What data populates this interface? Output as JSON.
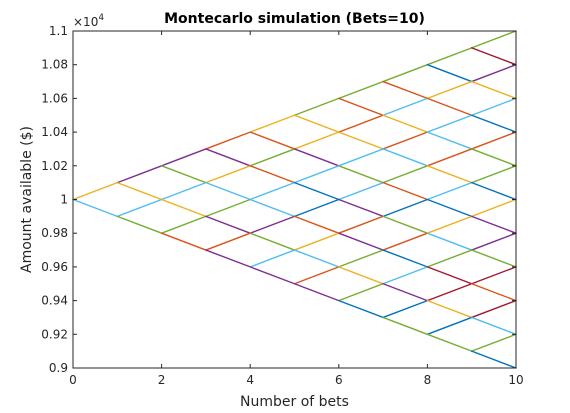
{
  "chart_data": {
    "type": "line",
    "title": "Montecarlo simulation (Bets=10)",
    "xlabel": "Number of bets",
    "ylabel": "Amount available ($)",
    "xlim": [
      0,
      10
    ],
    "ylim": [
      0.9,
      1.1
    ],
    "y_exponent_label": "×10",
    "y_exponent_power": "4",
    "xticks": [
      0,
      2,
      4,
      6,
      8,
      10
    ],
    "xtick_labels": [
      "0",
      "2",
      "4",
      "6",
      "8",
      "10"
    ],
    "yticks": [
      0.9,
      0.92,
      0.94,
      0.96,
      0.98,
      1.0,
      1.02,
      1.04,
      1.06,
      1.08,
      1.1
    ],
    "ytick_labels": [
      "0.9",
      "0.92",
      "0.94",
      "0.96",
      "0.98",
      "1",
      "1.02",
      "1.04",
      "1.06",
      "1.08",
      "1.1"
    ],
    "grid": false,
    "legend": "none",
    "palette": [
      "#0072BD",
      "#D95319",
      "#EDB120",
      "#7E2F8E",
      "#77AC30",
      "#4DBEEE",
      "#A2142F"
    ],
    "segments": [
      {
        "x": [
          0,
          1
        ],
        "y": [
          1.0,
          1.01
        ],
        "color": "#EDB120"
      },
      {
        "x": [
          0,
          1
        ],
        "y": [
          1.0,
          0.99
        ],
        "color": "#4DBEEE"
      },
      {
        "x": [
          1,
          2
        ],
        "y": [
          1.01,
          1.02
        ],
        "color": "#7E2F8E"
      },
      {
        "x": [
          1,
          2
        ],
        "y": [
          1.01,
          1.0
        ],
        "color": "#EDB120"
      },
      {
        "x": [
          1,
          2
        ],
        "y": [
          0.99,
          1.0
        ],
        "color": "#4DBEEE"
      },
      {
        "x": [
          1,
          2
        ],
        "y": [
          0.99,
          0.98
        ],
        "color": "#77AC30"
      },
      {
        "x": [
          2,
          3
        ],
        "y": [
          1.02,
          1.03
        ],
        "color": "#7E2F8E"
      },
      {
        "x": [
          2,
          3
        ],
        "y": [
          1.02,
          1.01
        ],
        "color": "#77AC30"
      },
      {
        "x": [
          2,
          3
        ],
        "y": [
          1.0,
          1.01
        ],
        "color": "#4DBEEE"
      },
      {
        "x": [
          2,
          3
        ],
        "y": [
          1.0,
          0.99
        ],
        "color": "#EDB120"
      },
      {
        "x": [
          2,
          3
        ],
        "y": [
          0.98,
          0.99
        ],
        "color": "#77AC30"
      },
      {
        "x": [
          2,
          3
        ],
        "y": [
          0.98,
          0.97
        ],
        "color": "#D95319"
      },
      {
        "x": [
          3,
          4
        ],
        "y": [
          1.03,
          1.04
        ],
        "color": "#D95319"
      },
      {
        "x": [
          3,
          4
        ],
        "y": [
          1.03,
          1.02
        ],
        "color": "#7E2F8E"
      },
      {
        "x": [
          3,
          4
        ],
        "y": [
          1.01,
          1.02
        ],
        "color": "#EDB120"
      },
      {
        "x": [
          3,
          4
        ],
        "y": [
          1.01,
          1.0
        ],
        "color": "#4DBEEE"
      },
      {
        "x": [
          3,
          4
        ],
        "y": [
          0.99,
          1.0
        ],
        "color": "#77AC30"
      },
      {
        "x": [
          3,
          4
        ],
        "y": [
          0.99,
          0.98
        ],
        "color": "#7E2F8E"
      },
      {
        "x": [
          3,
          4
        ],
        "y": [
          0.97,
          0.98
        ],
        "color": "#D95319"
      },
      {
        "x": [
          3,
          4
        ],
        "y": [
          0.97,
          0.96
        ],
        "color": "#7E2F8E"
      },
      {
        "x": [
          4,
          5
        ],
        "y": [
          1.04,
          1.05
        ],
        "color": "#EDB120"
      },
      {
        "x": [
          4,
          5
        ],
        "y": [
          1.04,
          1.03
        ],
        "color": "#D95319"
      },
      {
        "x": [
          4,
          5
        ],
        "y": [
          1.02,
          1.03
        ],
        "color": "#77AC30"
      },
      {
        "x": [
          4,
          5
        ],
        "y": [
          1.02,
          1.01
        ],
        "color": "#D95319"
      },
      {
        "x": [
          4,
          5
        ],
        "y": [
          1.0,
          1.01
        ],
        "color": "#4DBEEE"
      },
      {
        "x": [
          4,
          5
        ],
        "y": [
          1.0,
          0.99
        ],
        "color": "#4DBEEE"
      },
      {
        "x": [
          4,
          5
        ],
        "y": [
          0.98,
          0.99
        ],
        "color": "#7E2F8E"
      },
      {
        "x": [
          4,
          5
        ],
        "y": [
          0.98,
          0.97
        ],
        "color": "#77AC30"
      },
      {
        "x": [
          4,
          5
        ],
        "y": [
          0.96,
          0.97
        ],
        "color": "#4DBEEE"
      },
      {
        "x": [
          4,
          5
        ],
        "y": [
          0.96,
          0.95
        ],
        "color": "#7E2F8E"
      },
      {
        "x": [
          5,
          6
        ],
        "y": [
          1.05,
          1.06
        ],
        "color": "#77AC30"
      },
      {
        "x": [
          5,
          6
        ],
        "y": [
          1.05,
          1.04
        ],
        "color": "#EDB120"
      },
      {
        "x": [
          5,
          6
        ],
        "y": [
          1.03,
          1.04
        ],
        "color": "#EDB120"
      },
      {
        "x": [
          5,
          6
        ],
        "y": [
          1.03,
          1.02
        ],
        "color": "#7E2F8E"
      },
      {
        "x": [
          5,
          6
        ],
        "y": [
          1.01,
          1.02
        ],
        "color": "#4DBEEE"
      },
      {
        "x": [
          5,
          6
        ],
        "y": [
          1.01,
          1.0
        ],
        "color": "#0072BD"
      },
      {
        "x": [
          5,
          6
        ],
        "y": [
          0.99,
          1.0
        ],
        "color": "#0072BD"
      },
      {
        "x": [
          5,
          6
        ],
        "y": [
          0.99,
          0.98
        ],
        "color": "#D95319"
      },
      {
        "x": [
          5,
          6
        ],
        "y": [
          0.97,
          0.98
        ],
        "color": "#EDB120"
      },
      {
        "x": [
          5,
          6
        ],
        "y": [
          0.97,
          0.96
        ],
        "color": "#4DBEEE"
      },
      {
        "x": [
          5,
          6
        ],
        "y": [
          0.95,
          0.96
        ],
        "color": "#D95319"
      },
      {
        "x": [
          5,
          6
        ],
        "y": [
          0.95,
          0.94
        ],
        "color": "#7E2F8E"
      },
      {
        "x": [
          6,
          7
        ],
        "y": [
          1.06,
          1.07
        ],
        "color": "#77AC30"
      },
      {
        "x": [
          6,
          7
        ],
        "y": [
          1.06,
          1.05
        ],
        "color": "#D95319"
      },
      {
        "x": [
          6,
          7
        ],
        "y": [
          1.04,
          1.05
        ],
        "color": "#D95319"
      },
      {
        "x": [
          6,
          7
        ],
        "y": [
          1.04,
          1.03
        ],
        "color": "#EDB120"
      },
      {
        "x": [
          6,
          7
        ],
        "y": [
          1.02,
          1.03
        ],
        "color": "#4DBEEE"
      },
      {
        "x": [
          6,
          7
        ],
        "y": [
          1.02,
          1.01
        ],
        "color": "#77AC30"
      },
      {
        "x": [
          6,
          7
        ],
        "y": [
          1.0,
          1.01
        ],
        "color": "#4DBEEE"
      },
      {
        "x": [
          6,
          7
        ],
        "y": [
          1.0,
          0.99
        ],
        "color": "#7E2F8E"
      },
      {
        "x": [
          6,
          7
        ],
        "y": [
          0.98,
          0.99
        ],
        "color": "#D95319"
      },
      {
        "x": [
          6,
          7
        ],
        "y": [
          0.98,
          0.97
        ],
        "color": "#7E2F8E"
      },
      {
        "x": [
          6,
          7
        ],
        "y": [
          0.96,
          0.97
        ],
        "color": "#77AC30"
      },
      {
        "x": [
          6,
          7
        ],
        "y": [
          0.96,
          0.95
        ],
        "color": "#EDB120"
      },
      {
        "x": [
          6,
          7
        ],
        "y": [
          0.94,
          0.95
        ],
        "color": "#77AC30"
      },
      {
        "x": [
          6,
          7
        ],
        "y": [
          0.94,
          0.93
        ],
        "color": "#0072BD"
      },
      {
        "x": [
          7,
          8
        ],
        "y": [
          1.07,
          1.08
        ],
        "color": "#77AC30"
      },
      {
        "x": [
          7,
          8
        ],
        "y": [
          1.07,
          1.06
        ],
        "color": "#D95319"
      },
      {
        "x": [
          7,
          8
        ],
        "y": [
          1.05,
          1.06
        ],
        "color": "#4DBEEE"
      },
      {
        "x": [
          7,
          8
        ],
        "y": [
          1.05,
          1.04
        ],
        "color": "#EDB120"
      },
      {
        "x": [
          7,
          8
        ],
        "y": [
          1.03,
          1.04
        ],
        "color": "#D95319"
      },
      {
        "x": [
          7,
          8
        ],
        "y": [
          1.03,
          1.02
        ],
        "color": "#4DBEEE"
      },
      {
        "x": [
          7,
          8
        ],
        "y": [
          1.01,
          1.02
        ],
        "color": "#77AC30"
      },
      {
        "x": [
          7,
          8
        ],
        "y": [
          1.01,
          1.0
        ],
        "color": "#D95319"
      },
      {
        "x": [
          7,
          8
        ],
        "y": [
          0.99,
          1.0
        ],
        "color": "#0072BD"
      },
      {
        "x": [
          7,
          8
        ],
        "y": [
          0.99,
          0.98
        ],
        "color": "#77AC30"
      },
      {
        "x": [
          7,
          8
        ],
        "y": [
          0.97,
          0.98
        ],
        "color": "#D95319"
      },
      {
        "x": [
          7,
          8
        ],
        "y": [
          0.97,
          0.96
        ],
        "color": "#0072BD"
      },
      {
        "x": [
          7,
          8
        ],
        "y": [
          0.95,
          0.96
        ],
        "color": "#4DBEEE"
      },
      {
        "x": [
          7,
          8
        ],
        "y": [
          0.95,
          0.94
        ],
        "color": "#7E2F8E"
      },
      {
        "x": [
          7,
          8
        ],
        "y": [
          0.93,
          0.94
        ],
        "color": "#0072BD"
      },
      {
        "x": [
          7,
          8
        ],
        "y": [
          0.93,
          0.92
        ],
        "color": "#77AC30"
      },
      {
        "x": [
          8,
          9
        ],
        "y": [
          1.08,
          1.09
        ],
        "color": "#77AC30"
      },
      {
        "x": [
          8,
          9
        ],
        "y": [
          1.08,
          1.07
        ],
        "color": "#0072BD"
      },
      {
        "x": [
          8,
          9
        ],
        "y": [
          1.06,
          1.07
        ],
        "color": "#EDB120"
      },
      {
        "x": [
          8,
          9
        ],
        "y": [
          1.06,
          1.05
        ],
        "color": "#D95319"
      },
      {
        "x": [
          8,
          9
        ],
        "y": [
          1.04,
          1.05
        ],
        "color": "#4DBEEE"
      },
      {
        "x": [
          8,
          9
        ],
        "y": [
          1.04,
          1.03
        ],
        "color": "#4DBEEE"
      },
      {
        "x": [
          8,
          9
        ],
        "y": [
          1.02,
          1.03
        ],
        "color": "#D95319"
      },
      {
        "x": [
          8,
          9
        ],
        "y": [
          1.02,
          1.01
        ],
        "color": "#EDB120"
      },
      {
        "x": [
          8,
          9
        ],
        "y": [
          1.0,
          1.01
        ],
        "color": "#4DBEEE"
      },
      {
        "x": [
          8,
          9
        ],
        "y": [
          1.0,
          0.99
        ],
        "color": "#0072BD"
      },
      {
        "x": [
          8,
          9
        ],
        "y": [
          0.98,
          0.99
        ],
        "color": "#EDB120"
      },
      {
        "x": [
          8,
          9
        ],
        "y": [
          0.98,
          0.97
        ],
        "color": "#4DBEEE"
      },
      {
        "x": [
          8,
          9
        ],
        "y": [
          0.96,
          0.97
        ],
        "color": "#77AC30"
      },
      {
        "x": [
          8,
          9
        ],
        "y": [
          0.96,
          0.95
        ],
        "color": "#A2142F"
      },
      {
        "x": [
          8,
          9
        ],
        "y": [
          0.94,
          0.95
        ],
        "color": "#A2142F"
      },
      {
        "x": [
          8,
          9
        ],
        "y": [
          0.94,
          0.93
        ],
        "color": "#EDB120"
      },
      {
        "x": [
          8,
          9
        ],
        "y": [
          0.92,
          0.93
        ],
        "color": "#0072BD"
      },
      {
        "x": [
          8,
          9
        ],
        "y": [
          0.92,
          0.91
        ],
        "color": "#77AC30"
      },
      {
        "x": [
          9,
          10
        ],
        "y": [
          1.09,
          1.1
        ],
        "color": "#77AC30"
      },
      {
        "x": [
          9,
          10
        ],
        "y": [
          1.09,
          1.08
        ],
        "color": "#A2142F"
      },
      {
        "x": [
          9,
          10
        ],
        "y": [
          1.07,
          1.08
        ],
        "color": "#7E2F8E"
      },
      {
        "x": [
          9,
          10
        ],
        "y": [
          1.07,
          1.06
        ],
        "color": "#EDB120"
      },
      {
        "x": [
          9,
          10
        ],
        "y": [
          1.05,
          1.06
        ],
        "color": "#4DBEEE"
      },
      {
        "x": [
          9,
          10
        ],
        "y": [
          1.05,
          1.04
        ],
        "color": "#0072BD"
      },
      {
        "x": [
          9,
          10
        ],
        "y": [
          1.03,
          1.04
        ],
        "color": "#D95319"
      },
      {
        "x": [
          9,
          10
        ],
        "y": [
          1.03,
          1.02
        ],
        "color": "#77AC30"
      },
      {
        "x": [
          9,
          10
        ],
        "y": [
          1.01,
          1.02
        ],
        "color": "#77AC30"
      },
      {
        "x": [
          9,
          10
        ],
        "y": [
          1.01,
          1.0
        ],
        "color": "#0072BD"
      },
      {
        "x": [
          9,
          10
        ],
        "y": [
          0.99,
          1.0
        ],
        "color": "#EDB120"
      },
      {
        "x": [
          9,
          10
        ],
        "y": [
          0.99,
          0.98
        ],
        "color": "#7E2F8E"
      },
      {
        "x": [
          9,
          10
        ],
        "y": [
          0.97,
          0.98
        ],
        "color": "#7E2F8E"
      },
      {
        "x": [
          9,
          10
        ],
        "y": [
          0.97,
          0.96
        ],
        "color": "#77AC30"
      },
      {
        "x": [
          9,
          10
        ],
        "y": [
          0.95,
          0.96
        ],
        "color": "#A2142F"
      },
      {
        "x": [
          9,
          10
        ],
        "y": [
          0.95,
          0.94
        ],
        "color": "#D95319"
      },
      {
        "x": [
          9,
          10
        ],
        "y": [
          0.93,
          0.94
        ],
        "color": "#A2142F"
      },
      {
        "x": [
          9,
          10
        ],
        "y": [
          0.93,
          0.92
        ],
        "color": "#4DBEEE"
      },
      {
        "x": [
          9,
          10
        ],
        "y": [
          0.91,
          0.92
        ],
        "color": "#77AC30"
      },
      {
        "x": [
          9,
          10
        ],
        "y": [
          0.91,
          0.9
        ],
        "color": "#0072BD"
      }
    ]
  }
}
